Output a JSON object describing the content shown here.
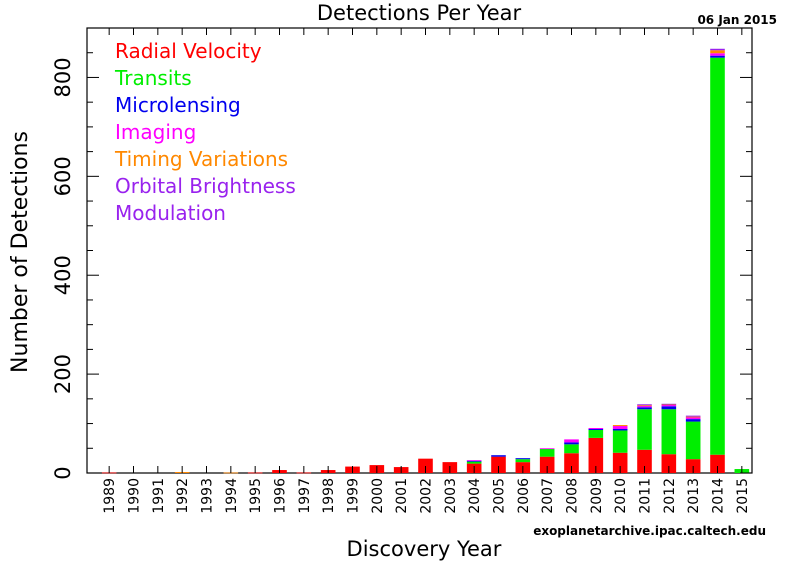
{
  "colors": {
    "radial_velocity": "#ff0000",
    "transits": "#00ee00",
    "microlensing": "#0000ee",
    "imaging": "#ff00ff",
    "timing_variations": "#ff8800",
    "orbital_brightness_modulation": "#9922ee"
  },
  "chart_data": {
    "type": "bar",
    "stacked": true,
    "title": "Detections Per Year",
    "date_label": "06 Jan 2015",
    "credit": "exoplanetarchive.ipac.caltech.edu",
    "xlabel": "Discovery Year",
    "ylabel": "Number of Detections",
    "ylim": [
      0,
      900
    ],
    "yticks": [
      "0",
      "200",
      "400",
      "600",
      "800"
    ],
    "grid": false,
    "legend_position": "top-left",
    "legend": [
      {
        "text": "Radial Velocity",
        "color": "#ff0000"
      },
      {
        "text": "Transits",
        "color": "#00ee00"
      },
      {
        "text": "Microlensing",
        "color": "#0000ee"
      },
      {
        "text": "Imaging",
        "color": "#ff00ff"
      },
      {
        "text": "Timing Variations",
        "color": "#ff8800"
      },
      {
        "text": "Orbital Brightness",
        "color": "#9922ee"
      },
      {
        "text": "Modulation",
        "color": "#9922ee"
      }
    ],
    "categories": [
      "1989",
      "1990",
      "1991",
      "1992",
      "1993",
      "1994",
      "1995",
      "1996",
      "1997",
      "1998",
      "1999",
      "2000",
      "2001",
      "2002",
      "2003",
      "2004",
      "2005",
      "2006",
      "2007",
      "2008",
      "2009",
      "2010",
      "2011",
      "2012",
      "2013",
      "2014",
      "2015"
    ],
    "series": [
      {
        "name": "Radial Velocity",
        "color": "#ff0000",
        "values": [
          1,
          0,
          0,
          0,
          0,
          0,
          1,
          6,
          1,
          6,
          13,
          16,
          12,
          29,
          22,
          19,
          33,
          22,
          33,
          40,
          71,
          41,
          47,
          38,
          28,
          37,
          0
        ]
      },
      {
        "name": "Transits",
        "color": "#00ee00",
        "values": [
          0,
          0,
          0,
          0,
          0,
          0,
          0,
          0,
          0,
          0,
          0,
          0,
          0,
          0,
          0,
          4,
          0,
          6,
          16,
          18,
          16,
          45,
          82,
          91,
          76,
          803,
          8
        ]
      },
      {
        "name": "Microlensing",
        "color": "#0000ee",
        "values": [
          0,
          0,
          0,
          0,
          0,
          0,
          0,
          0,
          0,
          0,
          0,
          0,
          0,
          0,
          0,
          2,
          3,
          2,
          0,
          4,
          2,
          3,
          4,
          6,
          5,
          4,
          0
        ]
      },
      {
        "name": "Imaging",
        "color": "#ff00ff",
        "values": [
          0,
          0,
          0,
          0,
          0,
          0,
          0,
          0,
          0,
          0,
          0,
          0,
          0,
          0,
          0,
          1,
          0,
          0,
          1,
          6,
          2,
          6,
          3,
          3,
          4,
          5,
          0
        ]
      },
      {
        "name": "Timing Variations",
        "color": "#ff8800",
        "values": [
          0,
          0,
          0,
          2,
          0,
          1,
          0,
          0,
          0,
          0,
          0,
          0,
          0,
          0,
          0,
          0,
          0,
          0,
          0,
          0,
          0,
          2,
          1,
          1,
          1,
          6,
          0
        ]
      },
      {
        "name": "Orbital Brightness Modulation",
        "color": "#9922ee",
        "values": [
          0,
          0,
          0,
          0,
          0,
          0,
          0,
          0,
          0,
          0,
          0,
          0,
          0,
          0,
          0,
          0,
          0,
          0,
          0,
          0,
          0,
          0,
          2,
          1,
          2,
          3,
          0
        ]
      }
    ]
  }
}
